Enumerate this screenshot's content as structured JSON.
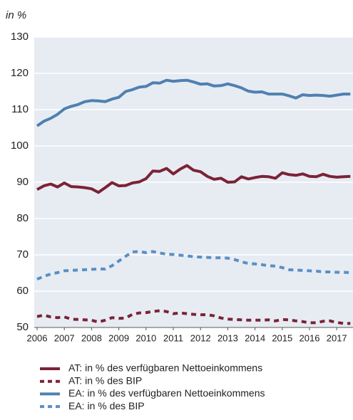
{
  "chart_data": {
    "type": "line",
    "ylabel": "in %",
    "categories": [
      "2006",
      null,
      null,
      null,
      "2007",
      null,
      null,
      null,
      "2008",
      null,
      null,
      null,
      "2009",
      null,
      null,
      null,
      "2010",
      null,
      null,
      null,
      "2011",
      null,
      null,
      null,
      "2012",
      null,
      null,
      null,
      "2013",
      null,
      null,
      null,
      "2014",
      null,
      null,
      null,
      "2015",
      null,
      null,
      null,
      "2016",
      null,
      null,
      null,
      "2017",
      null,
      null
    ],
    "ylim": [
      50,
      130
    ],
    "yticks": [
      50,
      60,
      70,
      80,
      90,
      100,
      110,
      120,
      130
    ],
    "grid": true,
    "series": [
      {
        "name": "AT: in % des verfügbaren Nettoeinkommens",
        "color": "#7b2336",
        "dashed": false,
        "values": [
          88,
          89,
          89.5,
          88.7,
          89.8,
          88.8,
          88.7,
          88.5,
          88.2,
          87.2,
          88.5,
          89.9,
          89,
          89.1,
          89.8,
          90.1,
          91,
          93.1,
          93,
          93.8,
          92.3,
          93.6,
          94.6,
          93.3,
          92.9,
          91.6,
          90.8,
          91.1,
          90,
          90.1,
          91.5,
          90.9,
          91.3,
          91.6,
          91.5,
          91.1,
          92.6,
          92.1,
          91.9,
          92.3,
          91.6,
          91.5,
          92.2,
          91.6,
          91.4,
          91.5,
          91.6
        ]
      },
      {
        "name": "AT: in % des BIP",
        "color": "#7b2336",
        "dashed": true,
        "values": [
          53,
          53.4,
          52.9,
          52.7,
          52.9,
          52.3,
          52.2,
          52.1,
          52,
          51.5,
          52,
          52.7,
          52.5,
          52.6,
          53.6,
          54,
          54.1,
          54.4,
          54.6,
          54.4,
          53.8,
          54,
          53.8,
          53.6,
          53.5,
          53.5,
          53.2,
          52.6,
          52.3,
          52.2,
          52.1,
          52,
          52,
          52,
          52.1,
          51.8,
          52.2,
          52.1,
          51.8,
          51.6,
          51.3,
          51.3,
          51.7,
          51.8,
          51.4,
          51.1,
          51.1
        ]
      },
      {
        "name": "EA: in % des verfügbaren Nettoeinkommens",
        "color": "#4f80b0",
        "dashed": false,
        "values": [
          105.5,
          106.8,
          107.6,
          108.7,
          110.2,
          110.9,
          111.4,
          112.2,
          112.5,
          112.4,
          112.2,
          112.9,
          113.4,
          115,
          115.5,
          116.2,
          116.4,
          117.4,
          117.3,
          118.1,
          117.8,
          118,
          118.1,
          117.6,
          117,
          117.1,
          116.5,
          116.6,
          117.1,
          116.6,
          116,
          115.1,
          114.8,
          114.9,
          114.3,
          114.3,
          114.3,
          113.8,
          113.2,
          114.1,
          113.9,
          114,
          113.9,
          113.7,
          114,
          114.3,
          114.3
        ]
      },
      {
        "name": "EA: in % des BIP",
        "color": "#5a8fc4",
        "dashed": true,
        "values": [
          63.3,
          64.1,
          64.7,
          65.1,
          65.6,
          65.7,
          65.8,
          65.9,
          66,
          66.1,
          66.1,
          67,
          68.3,
          69.6,
          70.8,
          70.9,
          70.6,
          70.9,
          70.5,
          70.2,
          70.1,
          69.9,
          69.7,
          69.5,
          69.4,
          69.3,
          69.2,
          69.2,
          69.1,
          68.7,
          68.1,
          67.6,
          67.5,
          67.3,
          67,
          66.9,
          66.5,
          65.9,
          65.8,
          65.7,
          65.6,
          65.5,
          65.3,
          65.3,
          65.2,
          65.2,
          65.1
        ]
      }
    ]
  }
}
